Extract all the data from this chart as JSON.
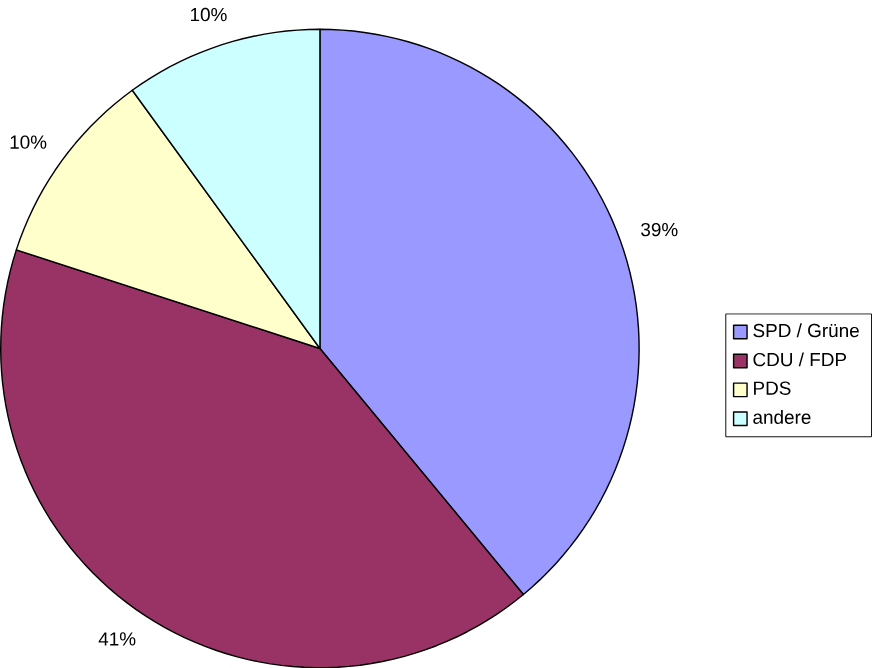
{
  "chart_data": {
    "type": "pie",
    "categories": [
      "SPD / Grüne",
      "CDU / FDP",
      "PDS",
      "andere"
    ],
    "values": [
      39,
      41,
      10,
      10
    ],
    "colors": [
      "#9999ff",
      "#993366",
      "#ffffcc",
      "#ccffff"
    ],
    "value_labels": [
      "39%",
      "41%",
      "10%",
      "10%"
    ],
    "legend": "right"
  }
}
